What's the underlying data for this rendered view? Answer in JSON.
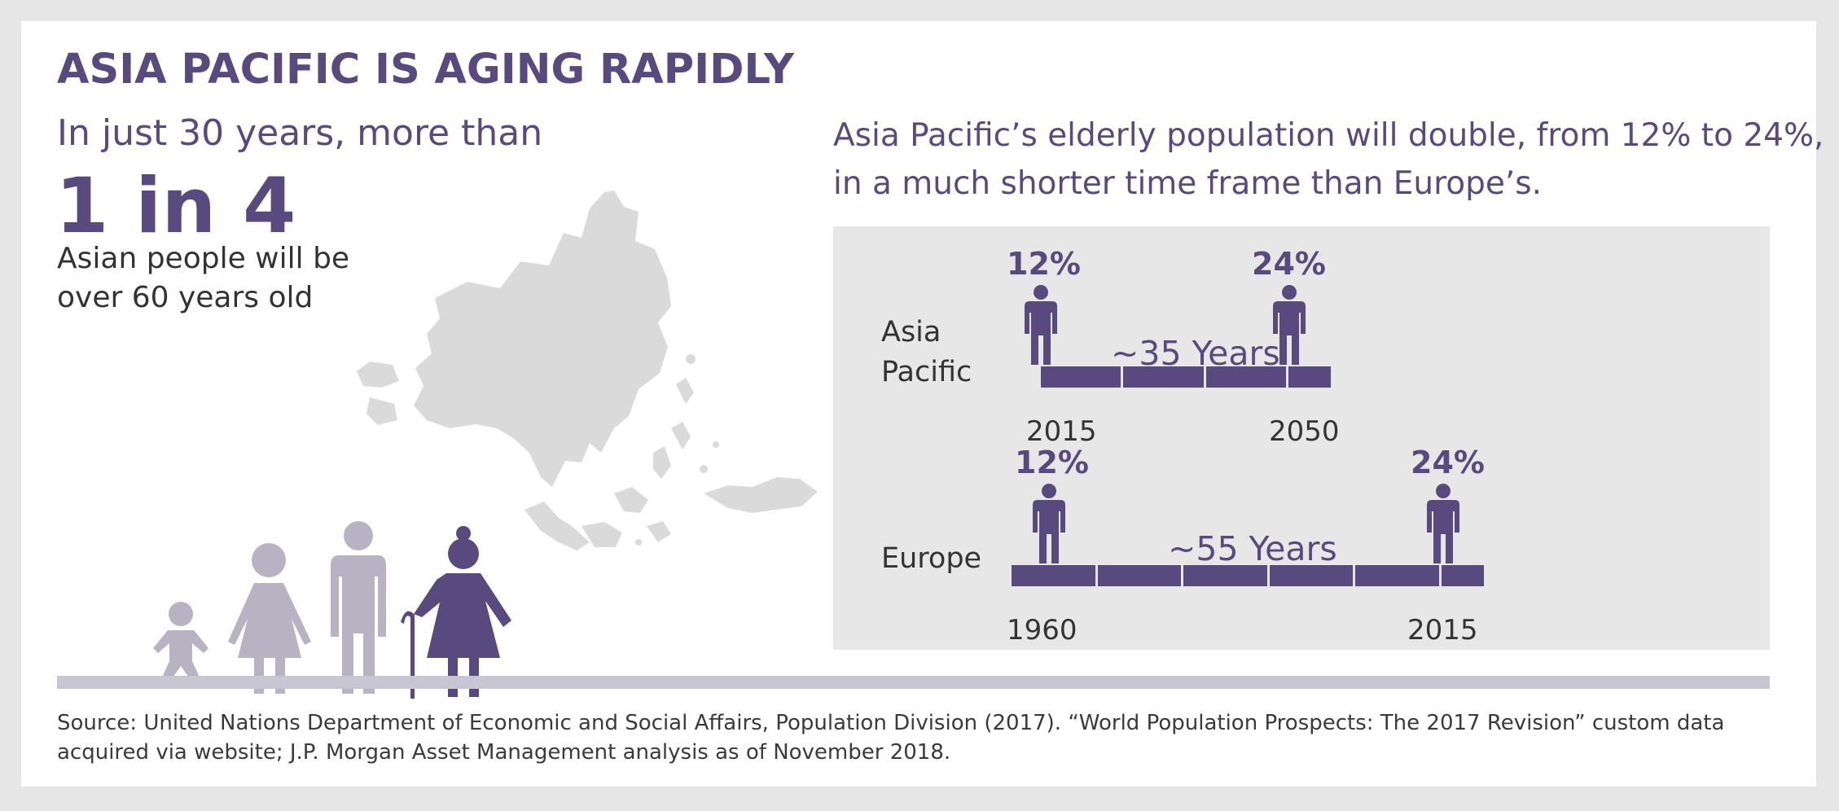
{
  "title": "ASIA PACIFIC IS AGING RAPIDLY",
  "left": {
    "lead": "In just 30 years, more than",
    "stat": "1 in 4",
    "desc_line1": "Asian people will be",
    "desc_line2": "over 60 years old"
  },
  "right": {
    "headline_line1": "Asia Pacific’s elderly population will double, from 12% to 24%,",
    "headline_line2": "in a much shorter time frame than Europe’s."
  },
  "chart_data": {
    "type": "table",
    "rows": [
      {
        "region_line1": "Asia",
        "region_line2": "Pacific",
        "start_pct": "12%",
        "end_pct": "24%",
        "duration": "~35 Years",
        "start_year": "2015",
        "end_year": "2050",
        "start_value": 12,
        "end_value": 24,
        "start_year_value": 2015,
        "end_year_value": 2050
      },
      {
        "region": "Europe",
        "start_pct": "12%",
        "end_pct": "24%",
        "duration": "~55 Years",
        "start_year": "1960",
        "end_year": "2015",
        "start_value": 12,
        "end_value": 24,
        "start_year_value": 1960,
        "end_year_value": 2015
      }
    ]
  },
  "source": "Source: United Nations Department of Economic and Social Affairs, Population Division (2017). “World Population Prospects: The 2017 Revision” custom data acquired via website; J.P. Morgan Asset Management analysis as of November 2018.",
  "icons": [
    "asia-pacific-map-icon",
    "baby-icon",
    "girl-icon",
    "adult-icon",
    "elderly-woman-icon",
    "person-icon"
  ],
  "colors": {
    "accent": "#584a7f",
    "light_figure": "#b8b3c3",
    "map": "#dadada",
    "panel": "#e7e7e7",
    "ground": "#c9c6d3"
  }
}
